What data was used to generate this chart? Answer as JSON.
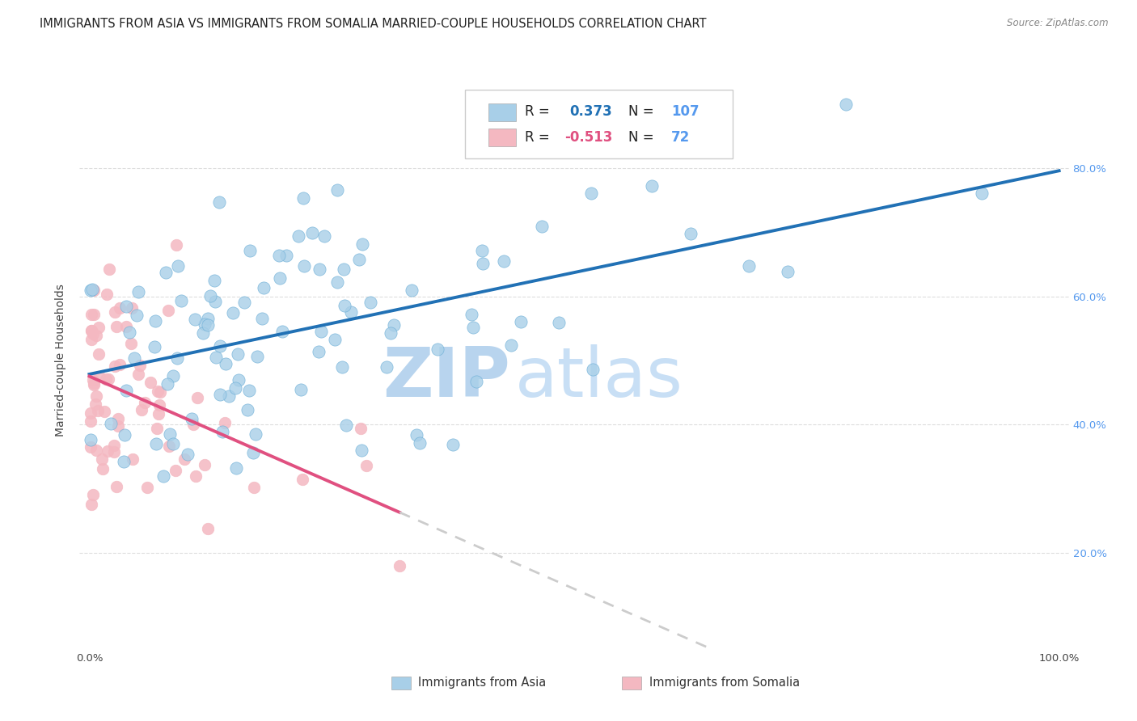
{
  "title": "IMMIGRANTS FROM ASIA VS IMMIGRANTS FROM SOMALIA MARRIED-COUPLE HOUSEHOLDS CORRELATION CHART",
  "source": "Source: ZipAtlas.com",
  "ylabel": "Married-couple Households",
  "asia_R": 0.373,
  "asia_N": 107,
  "somalia_R": -0.513,
  "somalia_N": 72,
  "asia_color": "#a8cfe8",
  "asia_edge_color": "#6baed6",
  "asia_line_color": "#2171b5",
  "somalia_color": "#f4b8c1",
  "somalia_edge_color": "#f4b8c1",
  "somalia_line_color": "#e05080",
  "trendline_extend_color": "#cccccc",
  "background_color": "#ffffff",
  "grid_color": "#dddddd",
  "watermark_zip": "ZIP",
  "watermark_atlas": "atlas",
  "right_axis_color": "#5599ee",
  "title_fontsize": 10.5,
  "axis_label_fontsize": 10,
  "tick_fontsize": 9.5,
  "legend_box_color": "#5599ee"
}
